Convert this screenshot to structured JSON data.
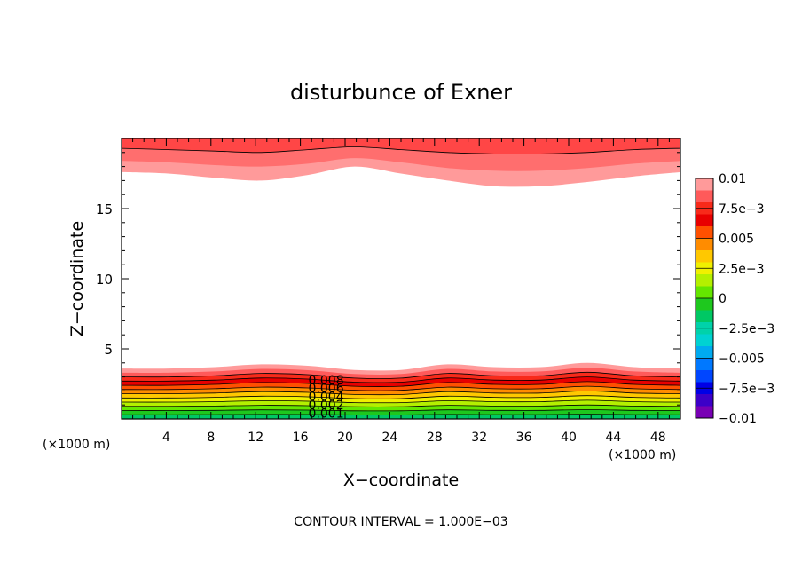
{
  "chart_data": {
    "type": "contour",
    "title": "disturbunce of Exner",
    "xlabel": "X−coordinate",
    "ylabel": "Z−coordinate",
    "x_unit_left": "(×1000 m)",
    "x_unit_right": "(×1000 m)",
    "footer": "CONTOUR INTERVAL = 1.000E−03",
    "xlim": [
      0,
      50
    ],
    "ylim": [
      0,
      20
    ],
    "x_ticks": [
      "4",
      "8",
      "12",
      "16",
      "20",
      "24",
      "28",
      "32",
      "36",
      "40",
      "44",
      "48"
    ],
    "x_tick_values": [
      4,
      8,
      12,
      16,
      20,
      24,
      28,
      32,
      36,
      40,
      44,
      48
    ],
    "y_ticks": [
      "5",
      "10",
      "15"
    ],
    "y_tick_values": [
      5,
      10,
      15
    ],
    "contour_labels": [
      "0.008",
      "0.006",
      "0.004",
      "0.002",
      "0.001"
    ],
    "colorbar": {
      "labels": [
        "0.01",
        "7.5e−3",
        "0.005",
        "2.5e−3",
        "0",
        "−2.5e−3",
        "−0.005",
        "−7.5e−3",
        "−0.01"
      ],
      "colors": [
        "#ff9a9a",
        "#ff5a5a",
        "#f82a1a",
        "#e80000",
        "#ff5000",
        "#ff8c00",
        "#ffc800",
        "#f0f000",
        "#b4f000",
        "#64e600",
        "#1ec81e",
        "#00c864",
        "#00d2aa",
        "#00d2d2",
        "#00aaf0",
        "#0078ff",
        "#0046ff",
        "#0000e6",
        "#3c00c8",
        "#7800b4"
      ]
    },
    "bottom_band": {
      "z_top": [
        3.6,
        3.6,
        3.7,
        3.9,
        3.8,
        3.5,
        3.5,
        3.9,
        3.7,
        3.7,
        4.0,
        3.7,
        3.6
      ],
      "colors": [
        "#ff9a9a",
        "#ff5a5a",
        "#f82a1a",
        "#e80000",
        "#ff5000",
        "#ff8c00",
        "#ffc800",
        "#f0f000",
        "#b4f000",
        "#64e600",
        "#1ec81e",
        "#00c864"
      ]
    },
    "top_band": {
      "z_bottom_outer": [
        17.6,
        17.5,
        17.2,
        17.0,
        17.4,
        18.0,
        17.5,
        17.0,
        16.6,
        16.6,
        16.9,
        17.3,
        17.6
      ],
      "z_bottom_inner": [
        18.4,
        18.3,
        18.1,
        18.0,
        18.2,
        18.6,
        18.3,
        17.9,
        17.7,
        17.7,
        17.9,
        18.2,
        18.4
      ],
      "z_bottom_red": [
        19.3,
        19.2,
        19.1,
        19.0,
        19.2,
        19.4,
        19.2,
        19.0,
        18.9,
        18.9,
        19.0,
        19.2,
        19.3
      ],
      "colors": [
        "#ff9a9a",
        "#ff6e6e",
        "#ff4646"
      ]
    }
  }
}
